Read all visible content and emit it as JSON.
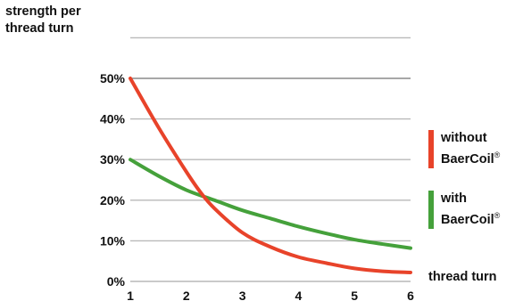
{
  "chart_data": {
    "type": "line",
    "y_title": [
      "strength per",
      "thread turn"
    ],
    "x_title": "thread turn",
    "x_ticks": [
      "1",
      "2",
      "3",
      "4",
      "5",
      "6"
    ],
    "y_ticks": [
      "0%",
      "10%",
      "20%",
      "30%",
      "40%",
      "50%"
    ],
    "xlim": [
      1,
      6
    ],
    "ylim": [
      0,
      50
    ],
    "grid": "horizontal",
    "legend_position": "right",
    "series": [
      {
        "name": "without BaerCoil®",
        "name_lines": [
          "without",
          "BaerCoil"
        ],
        "color": "#e8432a",
        "x": [
          1,
          1.5,
          2,
          2.25,
          2.5,
          3,
          3.5,
          4,
          4.5,
          5,
          5.5,
          6
        ],
        "y": [
          50,
          38,
          27,
          22,
          18,
          12,
          8.5,
          6,
          4.5,
          3.2,
          2.5,
          2.2
        ]
      },
      {
        "name": "with BaerCoil®",
        "name_lines": [
          "with",
          "BaerCoil"
        ],
        "color": "#45a13b",
        "x": [
          1,
          1.5,
          2,
          2.5,
          3,
          3.5,
          4,
          4.5,
          5,
          5.5,
          6
        ],
        "y": [
          30,
          26,
          22.5,
          20,
          17.5,
          15.5,
          13.5,
          11.8,
          10.3,
          9.2,
          8.2
        ]
      }
    ]
  }
}
